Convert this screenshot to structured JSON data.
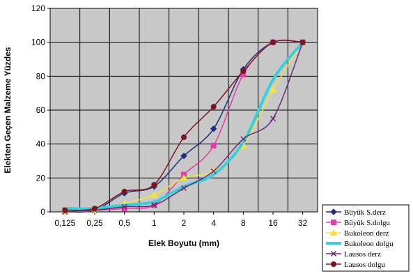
{
  "chart_data": {
    "type": "line",
    "title": "",
    "xlabel": "Elek Boyutu (mm)",
    "ylabel": "Elekten Geçen Malzeme Yüzdes",
    "x": [
      "0,125",
      "0,25",
      "0,5",
      "1",
      "2",
      "4",
      "8",
      "16",
      "32"
    ],
    "ylim": [
      0,
      120
    ],
    "yticks": [
      "0",
      "20",
      "40",
      "60",
      "80",
      "100",
      "120"
    ],
    "grid": true,
    "legend_position": "bottom-right",
    "series": [
      {
        "name": "Büyük S.derz",
        "color": "#1c2f7a",
        "marker": "diamond",
        "values": [
          0,
          1,
          11,
          15,
          33,
          49,
          84,
          100,
          100
        ]
      },
      {
        "name": "Büyük S.dolgu",
        "color": "#e43ca6",
        "marker": "square",
        "values": [
          1,
          1,
          2,
          4,
          22,
          39,
          81,
          100,
          100
        ]
      },
      {
        "name": "Bukoleon derz",
        "color": "#f2e43a",
        "marker": "triangle",
        "values": [
          0,
          1,
          5,
          10,
          20,
          24,
          39,
          72,
          100
        ]
      },
      {
        "name": "Bukoleon dolgu",
        "color": "#38d0d8",
        "marker": "none",
        "values": [
          2,
          2,
          4,
          6,
          15,
          22,
          41,
          78,
          100
        ]
      },
      {
        "name": "Lausos derz",
        "color": "#6a2a78",
        "marker": "x",
        "values": [
          0,
          1,
          3,
          4,
          14,
          24,
          43,
          55,
          100
        ]
      },
      {
        "name": "Lausos dolgu",
        "color": "#7a1420",
        "marker": "circle",
        "values": [
          1,
          2,
          12,
          16,
          44,
          62,
          83,
          100,
          100
        ]
      }
    ]
  }
}
